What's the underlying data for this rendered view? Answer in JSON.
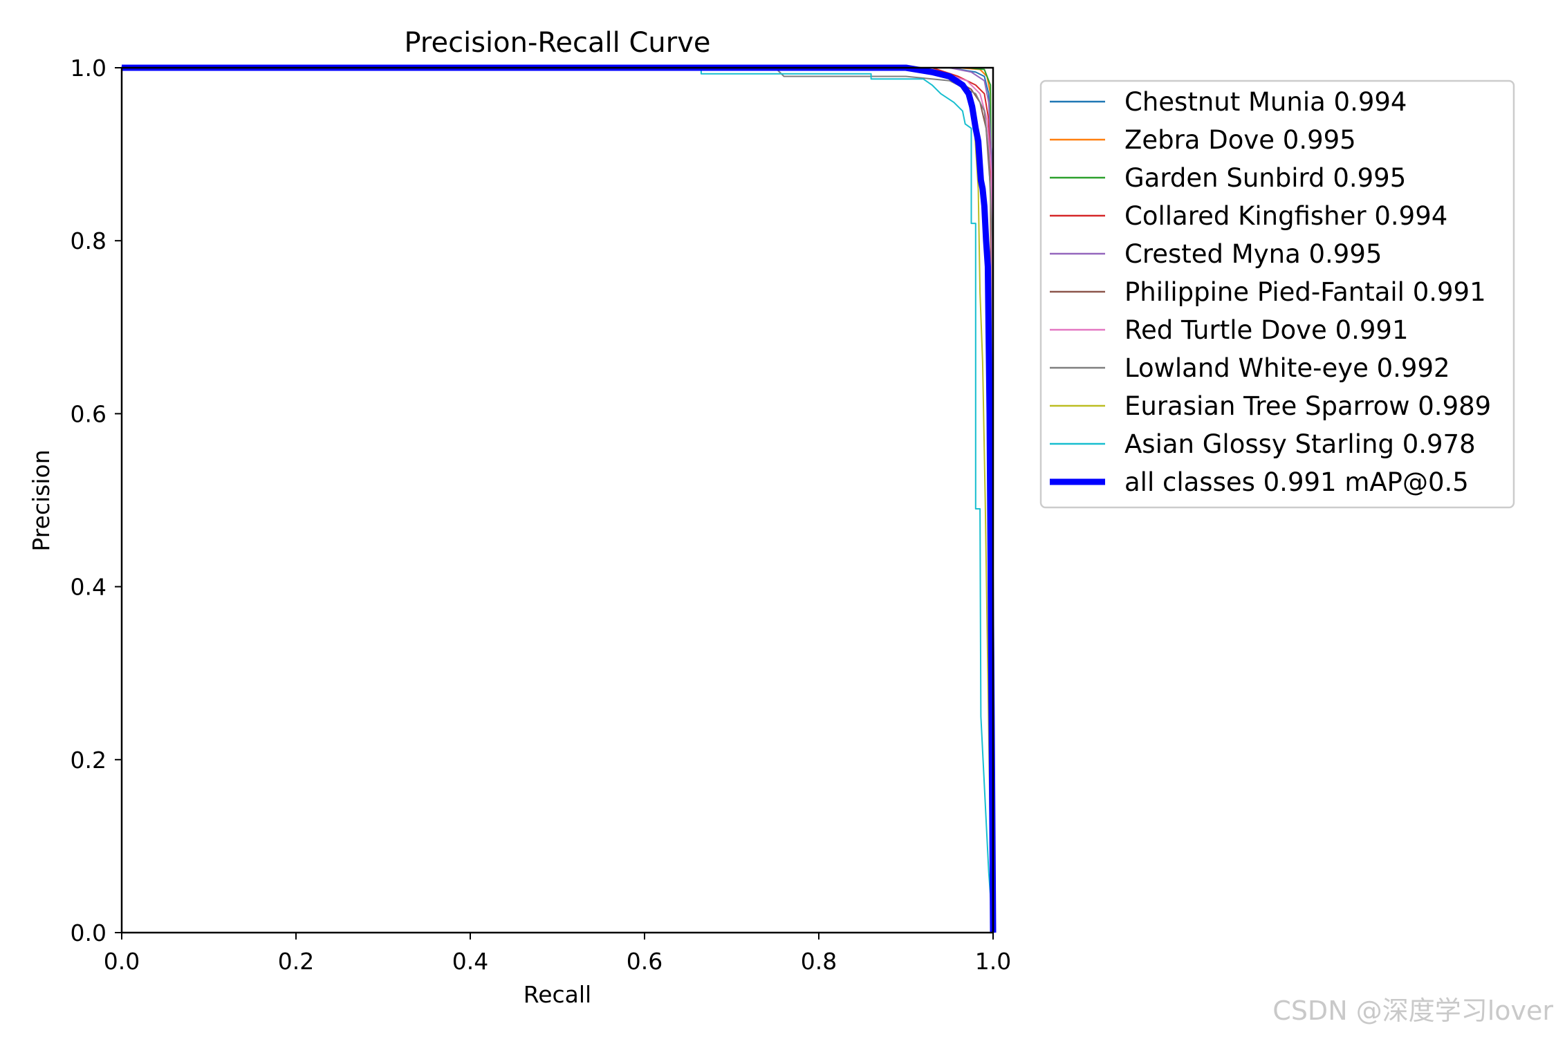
{
  "chart_data": {
    "type": "line",
    "title": "Precision-Recall Curve",
    "xlabel": "Recall",
    "ylabel": "Precision",
    "xlim": [
      0,
      1
    ],
    "ylim": [
      0,
      1
    ],
    "xticks": [
      "0.0",
      "0.2",
      "0.4",
      "0.6",
      "0.8",
      "1.0"
    ],
    "yticks": [
      "0.0",
      "0.2",
      "0.4",
      "0.6",
      "0.8",
      "1.0"
    ],
    "grid": false,
    "legend_position": "outside-right-top",
    "series": [
      {
        "name": "Chestnut Munia 0.994",
        "color": "#1f77b4",
        "width": 2,
        "points": [
          [
            0,
            1
          ],
          [
            0.95,
            1
          ],
          [
            0.98,
            0.995
          ],
          [
            0.99,
            0.99
          ],
          [
            0.995,
            0.97
          ],
          [
            0.998,
            0.9
          ],
          [
            0.999,
            0.5
          ],
          [
            1.0,
            0
          ]
        ]
      },
      {
        "name": "Zebra Dove 0.995",
        "color": "#ff7f0e",
        "width": 2,
        "points": [
          [
            0,
            1
          ],
          [
            0.96,
            1
          ],
          [
            0.985,
            0.998
          ],
          [
            0.993,
            0.99
          ],
          [
            0.997,
            0.97
          ],
          [
            0.999,
            0.6
          ],
          [
            1.0,
            0
          ]
        ]
      },
      {
        "name": "Garden Sunbird 0.995",
        "color": "#2ca02c",
        "width": 2,
        "points": [
          [
            0,
            1
          ],
          [
            0.97,
            1
          ],
          [
            0.99,
            0.998
          ],
          [
            0.995,
            0.985
          ],
          [
            0.997,
            0.98
          ],
          [
            0.999,
            0.7
          ],
          [
            1.0,
            0
          ]
        ]
      },
      {
        "name": "Collared Kingfisher 0.994",
        "color": "#d62728",
        "width": 2,
        "points": [
          [
            0,
            1
          ],
          [
            0.93,
            1
          ],
          [
            0.96,
            0.99
          ],
          [
            0.98,
            0.98
          ],
          [
            0.99,
            0.97
          ],
          [
            0.995,
            0.94
          ],
          [
            0.998,
            0.85
          ],
          [
            1.0,
            0
          ]
        ]
      },
      {
        "name": "Crested Myna 0.995",
        "color": "#9467bd",
        "width": 2,
        "points": [
          [
            0,
            1
          ],
          [
            0.95,
            1
          ],
          [
            0.975,
            0.995
          ],
          [
            0.99,
            0.985
          ],
          [
            0.995,
            0.96
          ],
          [
            0.998,
            0.9
          ],
          [
            1.0,
            0
          ]
        ]
      },
      {
        "name": "Philippine Pied-Fantail 0.991",
        "color": "#8c564b",
        "width": 2,
        "points": [
          [
            0,
            1
          ],
          [
            0.9,
            1
          ],
          [
            0.95,
            0.99
          ],
          [
            0.975,
            0.975
          ],
          [
            0.985,
            0.96
          ],
          [
            0.992,
            0.93
          ],
          [
            0.997,
            0.86
          ],
          [
            1.0,
            0
          ]
        ]
      },
      {
        "name": "Red Turtle Dove 0.991",
        "color": "#e377c2",
        "width": 2,
        "points": [
          [
            0,
            1
          ],
          [
            0.9,
            1
          ],
          [
            0.94,
            0.995
          ],
          [
            0.97,
            0.985
          ],
          [
            0.985,
            0.97
          ],
          [
            0.993,
            0.94
          ],
          [
            0.998,
            0.88
          ],
          [
            1.0,
            0
          ]
        ]
      },
      {
        "name": "Lowland White-eye 0.992",
        "color": "#7f7f7f",
        "width": 2,
        "points": [
          [
            0,
            1
          ],
          [
            0.75,
            1
          ],
          [
            0.76,
            0.99
          ],
          [
            0.9,
            0.99
          ],
          [
            0.95,
            0.985
          ],
          [
            0.98,
            0.97
          ],
          [
            0.99,
            0.95
          ],
          [
            0.995,
            0.9
          ],
          [
            0.999,
            0.8
          ],
          [
            1.0,
            0
          ]
        ]
      },
      {
        "name": "Eurasian Tree Sparrow 0.989",
        "color": "#bcbd22",
        "width": 2,
        "points": [
          [
            0,
            1
          ],
          [
            0.92,
            1
          ],
          [
            0.955,
            0.99
          ],
          [
            0.97,
            0.97
          ],
          [
            0.978,
            0.94
          ],
          [
            0.983,
            0.86
          ],
          [
            0.985,
            0.74
          ],
          [
            0.988,
            0.66
          ],
          [
            0.991,
            0.5
          ],
          [
            0.994,
            0.3
          ],
          [
            0.997,
            0.1
          ],
          [
            1.0,
            0
          ]
        ]
      },
      {
        "name": "Asian Glossy Starling 0.978",
        "color": "#17becf",
        "width": 2,
        "points": [
          [
            0,
            1
          ],
          [
            0.665,
            1
          ],
          [
            0.665,
            0.993
          ],
          [
            0.86,
            0.993
          ],
          [
            0.86,
            0.987
          ],
          [
            0.92,
            0.987
          ],
          [
            0.93,
            0.98
          ],
          [
            0.94,
            0.97
          ],
          [
            0.955,
            0.96
          ],
          [
            0.965,
            0.95
          ],
          [
            0.968,
            0.935
          ],
          [
            0.975,
            0.93
          ],
          [
            0.975,
            0.82
          ],
          [
            0.98,
            0.82
          ],
          [
            0.98,
            0.49
          ],
          [
            0.985,
            0.49
          ],
          [
            0.986,
            0.25
          ],
          [
            0.99,
            0.17
          ],
          [
            0.995,
            0.07
          ],
          [
            1.0,
            0
          ]
        ]
      },
      {
        "name": "all classes 0.991 mAP@0.5",
        "color": "#0000ff",
        "width": 9,
        "points": [
          [
            0,
            1
          ],
          [
            0.9,
            1
          ],
          [
            0.93,
            0.995
          ],
          [
            0.95,
            0.99
          ],
          [
            0.965,
            0.98
          ],
          [
            0.972,
            0.97
          ],
          [
            0.976,
            0.955
          ],
          [
            0.98,
            0.93
          ],
          [
            0.983,
            0.915
          ],
          [
            0.986,
            0.87
          ],
          [
            0.988,
            0.86
          ],
          [
            0.99,
            0.84
          ],
          [
            0.992,
            0.8
          ],
          [
            0.994,
            0.77
          ],
          [
            0.996,
            0.6
          ],
          [
            0.998,
            0.3
          ],
          [
            1.0,
            0
          ]
        ]
      }
    ]
  },
  "watermark": "CSDN @深度学习lover"
}
